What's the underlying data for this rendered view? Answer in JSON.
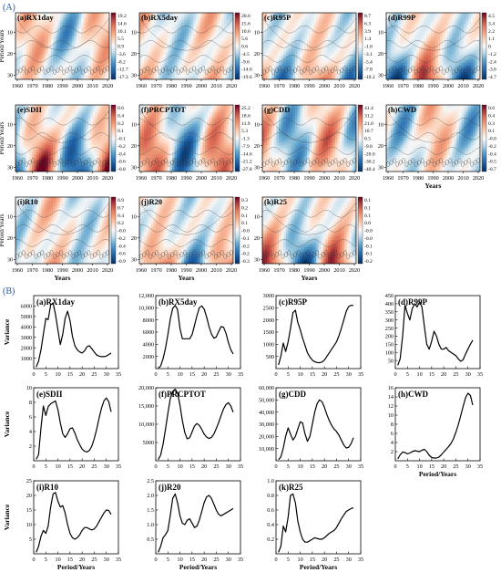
{
  "figure": {
    "panel_a_label": "(A)",
    "panel_b_label": "(B)"
  },
  "wavelet": {
    "x_ticks": [
      "1960",
      "1970",
      "1980",
      "1990",
      "2000",
      "2010",
      "2020"
    ],
    "y_ticks": [
      "10",
      "20",
      "30"
    ],
    "y_label": "Period/Years",
    "x_label": "Years",
    "ylim": [
      1,
      32
    ],
    "colormap": "RdBu_r",
    "panels": [
      {
        "title": "(a)RX1day",
        "cbar": [
          "19.2",
          "14.6",
          "10.1",
          "5.5",
          "0.9",
          "-3.6",
          "-8.2",
          "-12.7",
          "-17.3"
        ]
      },
      {
        "title": "(b)RX5day",
        "cbar": [
          "20.6",
          "15.6",
          "10.6",
          "5.6",
          "0.6",
          "-4.5",
          "-9.6",
          "-14.6",
          "-19.6"
        ]
      },
      {
        "title": "(c)R95P",
        "cbar": [
          "8.7",
          "6.3",
          "3.9",
          "1.4",
          "-1.0",
          "-3.1",
          "-5.4",
          "-7.8",
          "-10.2"
        ]
      },
      {
        "title": "(d)R99P",
        "cbar": [
          "4.5",
          "3.4",
          "2.2",
          "1.1",
          "0",
          "-1.2",
          "-2.4",
          "-3.6",
          "-4.7"
        ]
      },
      {
        "title": "(e)SDII",
        "cbar": [
          "0.6",
          "0.4",
          "0.2",
          "0.1",
          "-0.1",
          "-0.2",
          "-0.4",
          "-0.6",
          "-0.8"
        ]
      },
      {
        "title": "(f)PRCPTOT",
        "cbar": [
          "25.2",
          "18.6",
          "11.9",
          "5.3",
          "-1.3",
          "-7.9",
          "-14.6",
          "-21.2",
          "-27.8"
        ]
      },
      {
        "title": "(g)CDD",
        "cbar": [
          "41.4",
          "31.2",
          "21.0",
          "10.7",
          "0.5",
          "-9.8",
          "-20.0",
          "-30.2",
          "-40.4"
        ]
      },
      {
        "title": "(h)CWD",
        "cbar": [
          "0.6",
          "0.4",
          "0.3",
          "0.1",
          "-0.0",
          "-0.2",
          "-0.4",
          "-0.5",
          "-0.7"
        ]
      },
      {
        "title": "(i)R10",
        "cbar": [
          "0.9",
          "0.7",
          "0.4",
          "0.2",
          "-0.0",
          "-0.2",
          "-0.4",
          "-0.6",
          "-0.9"
        ]
      },
      {
        "title": "(j)R20",
        "cbar": [
          "0.3",
          "0.2",
          "0.1",
          "0.1",
          "-0.0",
          "-0.1",
          "-0.2",
          "-0.2",
          "-0.3"
        ]
      },
      {
        "title": "(k)R25",
        "cbar": [
          "0.1",
          "0.1",
          "0.1",
          "0.0",
          "-0.0",
          "-0.0",
          "-0.1",
          "-0.1",
          "-0.2"
        ]
      }
    ]
  },
  "chart_data": [
    {
      "type": "line",
      "title": "(a)RX1day",
      "xlabel": "",
      "ylabel": "Variance",
      "xlim": [
        0,
        35
      ],
      "ylim": [
        0,
        7000
      ],
      "x_ticks": [
        "0",
        "5",
        "10",
        "15",
        "20",
        "25",
        "30",
        "35"
      ],
      "y_ticks": [
        "1000",
        "2000",
        "3000",
        "4000",
        "5000",
        "6000"
      ],
      "x": [
        1,
        2,
        3,
        4,
        5,
        6,
        7,
        8,
        9,
        10,
        11,
        12,
        13,
        14,
        15,
        16,
        17,
        18,
        19,
        20,
        21,
        22,
        23,
        24,
        25,
        26,
        27,
        28,
        29,
        30,
        31,
        32
      ],
      "values": [
        150,
        700,
        1800,
        3300,
        4800,
        4700,
        6100,
        6300,
        5200,
        3700,
        2300,
        3300,
        4800,
        5500,
        4600,
        3100,
        2200,
        1800,
        1600,
        1500,
        1700,
        2100,
        2200,
        1900,
        1600,
        1300,
        1200,
        1150,
        1150,
        1200,
        1350,
        1500
      ]
    },
    {
      "type": "line",
      "title": "(b)RX5day",
      "xlabel": "",
      "ylabel": "",
      "xlim": [
        0,
        35
      ],
      "ylim": [
        0,
        12000
      ],
      "x_ticks": [
        "0",
        "5",
        "10",
        "15",
        "20",
        "25",
        "30",
        "35"
      ],
      "y_ticks": [
        "2000",
        "4000",
        "6000",
        "8000",
        "10,000",
        "12,000"
      ],
      "x": [
        1,
        2,
        3,
        4,
        5,
        6,
        7,
        8,
        9,
        10,
        11,
        12,
        13,
        14,
        15,
        16,
        17,
        18,
        19,
        20,
        21,
        22,
        23,
        24,
        25,
        26,
        27,
        28,
        29,
        30,
        31,
        32
      ],
      "values": [
        100,
        400,
        1600,
        3300,
        5600,
        8100,
        9900,
        10400,
        9700,
        6600,
        4900,
        4900,
        4900,
        4900,
        5600,
        7100,
        8700,
        10000,
        10300,
        9800,
        8500,
        6900,
        5700,
        5000,
        5200,
        6100,
        6900,
        6800,
        5800,
        4300,
        3100,
        2400
      ]
    },
    {
      "type": "line",
      "title": "(c)R95P",
      "xlabel": "",
      "ylabel": "",
      "xlim": [
        0,
        35
      ],
      "ylim": [
        0,
        3000
      ],
      "x_ticks": [
        "0",
        "5",
        "10",
        "15",
        "20",
        "25",
        "30",
        "35"
      ],
      "y_ticks": [
        "500",
        "1000",
        "1500",
        "2000",
        "2500",
        "3000"
      ],
      "x": [
        1,
        2,
        3,
        4,
        5,
        6,
        7,
        8,
        9,
        10,
        11,
        12,
        13,
        14,
        15,
        16,
        17,
        18,
        19,
        20,
        21,
        22,
        23,
        24,
        25,
        26,
        27,
        28,
        29,
        30,
        31,
        32
      ],
      "values": [
        150,
        500,
        1050,
        700,
        1100,
        1650,
        2300,
        2400,
        1900,
        1600,
        1250,
        950,
        650,
        480,
        350,
        280,
        250,
        240,
        270,
        350,
        500,
        650,
        800,
        950,
        1100,
        1350,
        1650,
        2000,
        2350,
        2550,
        2600,
        2600
      ]
    },
    {
      "type": "line",
      "title": "(d)R99P",
      "xlabel": "",
      "ylabel": "",
      "xlim": [
        0,
        35
      ],
      "ylim": [
        0,
        450
      ],
      "x_ticks": [
        "0",
        "5",
        "10",
        "15",
        "20",
        "25",
        "30",
        "35"
      ],
      "y_ticks": [
        "50",
        "100",
        "150",
        "200",
        "250",
        "300",
        "350",
        "400",
        "450"
      ],
      "x": [
        1,
        2,
        3,
        4,
        5,
        6,
        7,
        8,
        9,
        10,
        11,
        12,
        13,
        14,
        15,
        16,
        17,
        18,
        19,
        20,
        21,
        22,
        23,
        24,
        25,
        26,
        27,
        28,
        29,
        30,
        31,
        32
      ],
      "values": [
        20,
        60,
        200,
        390,
        340,
        300,
        370,
        400,
        380,
        410,
        380,
        260,
        150,
        120,
        170,
        230,
        200,
        150,
        120,
        120,
        130,
        110,
        100,
        90,
        80,
        60,
        45,
        55,
        90,
        120,
        150,
        175
      ]
    },
    {
      "type": "line",
      "title": "(e)SDII",
      "xlabel": "",
      "ylabel": "Variance",
      "xlim": [
        0,
        35
      ],
      "ylim": [
        0,
        10
      ],
      "x_ticks": [
        "0",
        "5",
        "10",
        "15",
        "20",
        "25",
        "30",
        "35"
      ],
      "y_ticks": [
        "2",
        "4",
        "6",
        "8",
        "10"
      ],
      "x": [
        1,
        2,
        3,
        4,
        5,
        6,
        7,
        8,
        9,
        10,
        11,
        12,
        13,
        14,
        15,
        16,
        17,
        18,
        19,
        20,
        21,
        22,
        23,
        24,
        25,
        26,
        27,
        28,
        29,
        30,
        31,
        32
      ],
      "values": [
        0.2,
        0.8,
        4.5,
        7.5,
        6.2,
        7.4,
        7.8,
        8.0,
        8.2,
        7.0,
        5.2,
        3.7,
        3.2,
        3.7,
        4.4,
        4.5,
        3.8,
        2.9,
        2.2,
        1.6,
        1.3,
        1.2,
        1.4,
        2.0,
        3.0,
        4.3,
        5.8,
        7.2,
        8.2,
        8.6,
        8.1,
        6.7
      ]
    },
    {
      "type": "line",
      "title": "(f)PRCPTOT",
      "xlabel": "",
      "ylabel": "",
      "xlim": [
        0,
        35
      ],
      "ylim": [
        0,
        20000
      ],
      "x_ticks": [
        "0",
        "5",
        "10",
        "15",
        "20",
        "25",
        "30",
        "35"
      ],
      "y_ticks": [
        "5000",
        "10,000",
        "15,000",
        "20,000"
      ],
      "x": [
        1,
        2,
        3,
        4,
        5,
        6,
        7,
        8,
        9,
        10,
        11,
        12,
        13,
        14,
        15,
        16,
        17,
        18,
        19,
        20,
        21,
        22,
        23,
        24,
        25,
        26,
        27,
        28,
        29,
        30,
        31,
        32
      ],
      "values": [
        300,
        1500,
        4500,
        8500,
        13000,
        17000,
        19000,
        19600,
        18600,
        15200,
        11000,
        7700,
        6000,
        6300,
        7900,
        9500,
        10200,
        9700,
        8600,
        7300,
        6500,
        6100,
        6400,
        7300,
        8800,
        10500,
        12400,
        14200,
        15400,
        15900,
        15000,
        13300
      ]
    },
    {
      "type": "line",
      "title": "(g)CDD",
      "xlabel": "",
      "ylabel": "",
      "xlim": [
        0,
        35
      ],
      "ylim": [
        0,
        60000
      ],
      "x_ticks": [
        "0",
        "5",
        "10",
        "15",
        "20",
        "25",
        "30",
        "35"
      ],
      "y_ticks": [
        "10,000",
        "20,000",
        "30,000",
        "40,000",
        "50,000",
        "60,000"
      ],
      "x": [
        1,
        2,
        3,
        4,
        5,
        6,
        7,
        8,
        9,
        10,
        11,
        12,
        13,
        14,
        15,
        16,
        17,
        18,
        19,
        20,
        21,
        22,
        23,
        24,
        25,
        26,
        27,
        28,
        29,
        30,
        31,
        32
      ],
      "values": [
        1000,
        3000,
        10500,
        20000,
        27000,
        22000,
        17000,
        20000,
        26000,
        32000,
        31000,
        22000,
        16000,
        20000,
        30000,
        40000,
        47000,
        50000,
        48500,
        44000,
        38000,
        33000,
        29000,
        26000,
        24000,
        21000,
        17000,
        13000,
        10500,
        11000,
        14000,
        19000
      ]
    },
    {
      "type": "line",
      "title": "(h)CWD",
      "xlabel": "Period/Years",
      "ylabel": "",
      "xlim": [
        0,
        35
      ],
      "ylim": [
        0,
        16
      ],
      "x_ticks": [
        "0",
        "5",
        "10",
        "15",
        "20",
        "25",
        "30",
        "35"
      ],
      "y_ticks": [
        "2",
        "4",
        "6",
        "8",
        "10",
        "12",
        "14",
        "16"
      ],
      "x": [
        1,
        2,
        3,
        4,
        5,
        6,
        7,
        8,
        9,
        10,
        11,
        12,
        13,
        14,
        15,
        16,
        17,
        18,
        19,
        20,
        21,
        22,
        23,
        24,
        25,
        26,
        27,
        28,
        29,
        30,
        31,
        32
      ],
      "values": [
        0.4,
        1.3,
        1.9,
        1.8,
        1.5,
        1.7,
        2.0,
        2.2,
        2.1,
        2.0,
        2.3,
        2.5,
        2.0,
        1.2,
        0.7,
        0.6,
        0.6,
        0.8,
        1.3,
        1.9,
        2.5,
        3.1,
        3.8,
        4.8,
        6.2,
        7.9,
        9.8,
        11.9,
        13.8,
        14.8,
        14.3,
        12.2
      ]
    },
    {
      "type": "line",
      "title": "(i)R10",
      "xlabel": "Period/Years",
      "ylabel": "Variance",
      "xlim": [
        0,
        35
      ],
      "ylim": [
        0,
        25
      ],
      "x_ticks": [
        "0",
        "5",
        "10",
        "15",
        "20",
        "25",
        "30",
        "35"
      ],
      "y_ticks": [
        "5",
        "10",
        "15",
        "20",
        "25"
      ],
      "x": [
        1,
        2,
        3,
        4,
        5,
        6,
        7,
        8,
        9,
        10,
        11,
        12,
        13,
        14,
        15,
        16,
        17,
        18,
        19,
        20,
        21,
        22,
        23,
        24,
        25,
        26,
        27,
        28,
        29,
        30,
        31,
        32
      ],
      "values": [
        0.5,
        2.5,
        6.0,
        8.0,
        7.0,
        9.5,
        16.0,
        20.5,
        21.0,
        18.0,
        16.0,
        16.5,
        14.0,
        10.0,
        7.0,
        5.5,
        5.0,
        5.5,
        6.5,
        8.0,
        9.0,
        9.0,
        8.5,
        8.2,
        8.5,
        9.5,
        11.0,
        12.5,
        14.0,
        15.0,
        14.8,
        13.5
      ]
    },
    {
      "type": "line",
      "title": "(j)R20",
      "xlabel": "Period/Years",
      "ylabel": "",
      "xlim": [
        0,
        35
      ],
      "ylim": [
        0,
        2.5
      ],
      "x_ticks": [
        "0",
        "5",
        "10",
        "15",
        "20",
        "25",
        "30",
        "35"
      ],
      "y_ticks": [
        "0.5",
        "1.0",
        "1.5",
        "2.0",
        "2.5"
      ],
      "x": [
        1,
        2,
        3,
        4,
        5,
        6,
        7,
        8,
        9,
        10,
        11,
        12,
        13,
        14,
        15,
        16,
        17,
        18,
        19,
        20,
        21,
        22,
        23,
        24,
        25,
        26,
        27,
        28,
        29,
        30,
        31,
        32
      ],
      "values": [
        0.05,
        0.25,
        0.55,
        0.65,
        0.8,
        1.3,
        1.9,
        2.05,
        1.75,
        1.3,
        1.05,
        1.0,
        1.15,
        1.2,
        1.05,
        0.9,
        0.95,
        1.15,
        1.45,
        1.75,
        1.95,
        2.0,
        1.9,
        1.7,
        1.5,
        1.35,
        1.3,
        1.35,
        1.4,
        1.45,
        1.5,
        1.55
      ]
    },
    {
      "type": "line",
      "title": "(k)R25",
      "xlabel": "Period/Years",
      "ylabel": "",
      "xlim": [
        0,
        35
      ],
      "ylim": [
        0,
        1.0
      ],
      "x_ticks": [
        "0",
        "5",
        "10",
        "15",
        "20",
        "25",
        "30",
        "35"
      ],
      "y_ticks": [
        "0.2",
        "0.4",
        "0.6",
        "0.8",
        "1.0"
      ],
      "x": [
        1,
        2,
        3,
        4,
        5,
        6,
        7,
        8,
        9,
        10,
        11,
        12,
        13,
        14,
        15,
        16,
        17,
        18,
        19,
        20,
        21,
        22,
        23,
        24,
        25,
        26,
        27,
        28,
        29,
        30,
        31,
        32
      ],
      "values": [
        0.02,
        0.1,
        0.38,
        0.3,
        0.5,
        0.8,
        0.82,
        0.7,
        0.45,
        0.3,
        0.2,
        0.16,
        0.16,
        0.18,
        0.2,
        0.22,
        0.21,
        0.2,
        0.2,
        0.22,
        0.25,
        0.28,
        0.3,
        0.32,
        0.36,
        0.42,
        0.48,
        0.53,
        0.58,
        0.6,
        0.62,
        0.63
      ]
    }
  ]
}
